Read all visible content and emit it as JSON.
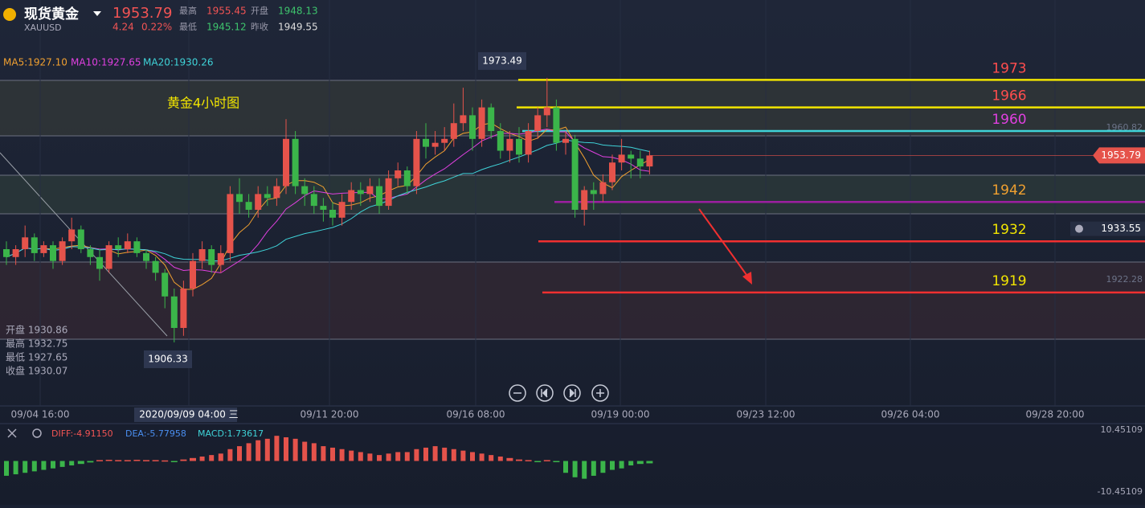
{
  "chart_data": {
    "type": "candlestick",
    "header": {
      "name": "现货黄金",
      "symbol": "XAUUSD",
      "price": "1953.79",
      "change": "4.24",
      "change_pct": "0.22%",
      "high_label": "最高",
      "high": "1955.45",
      "open_label": "开盘",
      "open": "1948.13",
      "low_label": "最低",
      "low": "1945.12",
      "prev_label": "昨收",
      "prev": "1949.55"
    },
    "ma_legend": [
      "MA5:1927.10",
      "MA10:1927.65",
      "MA20:1930.26"
    ],
    "annotation": "黄金4小时图",
    "ohlc_box": [
      "开盘 1930.86",
      "最高 1932.75",
      "最低 1927.65",
      "收盘 1930.07"
    ],
    "high_callout": 1973.49,
    "low_callout": 1906.33,
    "last_price_tag": 1953.79,
    "alert_price": 1933.55,
    "ylim": [
      1890.2,
      1993.27
    ],
    "yticks": [
      1960.82,
      1922.28
    ],
    "time_labels": [
      "09/04 16:00",
      "2020/09/09 04:00 三",
      "09/11 20:00",
      "09/16 08:00",
      "09/19 00:00",
      "09/23 12:00",
      "09/26 04:00",
      "09/28 20:00"
    ],
    "levels": [
      {
        "value": 1973,
        "color": "#f2e500",
        "label_color": "#ff4d4d"
      },
      {
        "value": 1966,
        "color": "#f2e500",
        "label_color": "#ff4d4d"
      },
      {
        "value": 1960,
        "color": "#3fd3d8",
        "label_color": "#e040e0"
      },
      {
        "value": 1942,
        "color": "#9b1fa0",
        "label_color": "#f0a030"
      },
      {
        "value": 1932,
        "color": "#f03030",
        "label_color": "#f2e500"
      },
      {
        "value": 1919,
        "color": "#f03030",
        "label_color": "#f2e500"
      }
    ],
    "open": [
      1930,
      1928,
      1930,
      1933,
      1929,
      1931,
      1927,
      1932,
      1935,
      1930,
      1928,
      1925,
      1931,
      1930,
      1932,
      1929,
      1927,
      1924,
      1918,
      1910,
      1920,
      1927,
      1930,
      1926,
      1929,
      1944,
      1942,
      1940,
      1944,
      1943,
      1946,
      1958,
      1946,
      1944,
      1941,
      1940,
      1938,
      1942,
      1945,
      1944,
      1946,
      1941,
      1948,
      1950,
      1946,
      1958,
      1956,
      1957,
      1958,
      1962,
      1964,
      1958,
      1966,
      1960,
      1955,
      1958,
      1954,
      1960,
      1964,
      1966,
      1957,
      1958,
      1940,
      1945,
      1944,
      1947,
      1952,
      1954,
      1953,
      1951
    ],
    "high": [
      1932,
      1931,
      1936,
      1934,
      1932,
      1932,
      1933,
      1938,
      1936,
      1931,
      1930,
      1932,
      1933,
      1934,
      1933,
      1930,
      1928,
      1925,
      1920,
      1922,
      1929,
      1932,
      1931,
      1931,
      1946,
      1948,
      1944,
      1946,
      1946,
      1948,
      1963,
      1960,
      1948,
      1946,
      1943,
      1942,
      1944,
      1947,
      1947,
      1948,
      1948,
      1950,
      1952,
      1951,
      1960,
      1962,
      1960,
      1961,
      1967,
      1971,
      1966,
      1968,
      1967,
      1962,
      1960,
      1961,
      1962,
      1966,
      1973.49,
      1968,
      1960,
      1959,
      1946,
      1947,
      1949,
      1954,
      1958,
      1955,
      1955,
      1955
    ],
    "low": [
      1926,
      1926,
      1928,
      1927,
      1928,
      1925,
      1926,
      1930,
      1929,
      1926,
      1922,
      1924,
      1928,
      1929,
      1928,
      1925,
      1922,
      1915,
      1906.33,
      1908,
      1918,
      1925,
      1924,
      1924,
      1927,
      1939,
      1938,
      1938,
      1941,
      1941,
      1944,
      1944,
      1941,
      1939,
      1937,
      1936,
      1936,
      1940,
      1941,
      1942,
      1939,
      1940,
      1946,
      1944,
      1944,
      1953,
      1954,
      1955,
      1956,
      1960,
      1955,
      1956,
      1958,
      1953,
      1952,
      1952,
      1952,
      1958,
      1961,
      1955,
      1954,
      1938,
      1936,
      1940,
      1942,
      1945,
      1950,
      1948,
      1948,
      1949
    ],
    "close": [
      1928,
      1930,
      1933,
      1929,
      1931,
      1927,
      1932,
      1935,
      1930,
      1928,
      1925,
      1931,
      1930,
      1932,
      1929,
      1927,
      1924,
      1918,
      1910,
      1920,
      1927,
      1930,
      1926,
      1929,
      1944,
      1942,
      1940,
      1944,
      1943,
      1946,
      1958,
      1946,
      1944,
      1941,
      1940,
      1938,
      1942,
      1945,
      1944,
      1946,
      1941,
      1948,
      1950,
      1946,
      1958,
      1956,
      1957,
      1958,
      1962,
      1964,
      1958,
      1966,
      1960,
      1955,
      1958,
      1954,
      1960,
      1964,
      1966,
      1957,
      1958,
      1940,
      1945,
      1944,
      1947,
      1952,
      1954,
      1953,
      1951,
      1953.79
    ],
    "macd": {
      "legend": [
        "DIFF:-4.91150",
        "DEA:-5.77958",
        "MACD:1.73617"
      ],
      "ylim": [
        -10.45109,
        10.45109
      ],
      "yticks": [
        10.45109,
        -10.45109
      ],
      "hist": [
        -5,
        -4.5,
        -4,
        -3.5,
        -3,
        -2.5,
        -2,
        -1.5,
        -1,
        -0.5,
        0.3,
        0.4,
        0.3,
        0.3,
        0.4,
        0.3,
        0.3,
        0.2,
        -0.3,
        0.5,
        1,
        1.5,
        2,
        2.5,
        4,
        5,
        6,
        7,
        7.5,
        8.5,
        8,
        7.5,
        6.5,
        6,
        5,
        4.5,
        4,
        3.5,
        3,
        2.5,
        2,
        2.5,
        3,
        3,
        4,
        4.5,
        5,
        4.5,
        4,
        3.5,
        3,
        2.5,
        2,
        1.5,
        1,
        0.5,
        0.3,
        -0.3,
        0.3,
        -0.2,
        -4,
        -5.5,
        -6,
        -5,
        -4,
        -3,
        -2.5,
        -1.5,
        -1,
        -0.8
      ]
    }
  }
}
